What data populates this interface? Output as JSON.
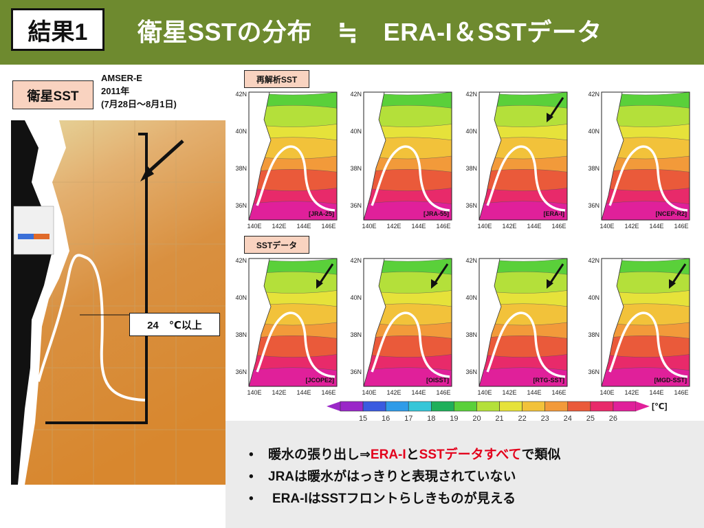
{
  "header": {
    "badge": "結果1",
    "title": "衛星SSTの分布　≒　ERA-I＆SSTデータ"
  },
  "satellite": {
    "tag": "衛星SST",
    "sensor": "AMSER-E",
    "year": "2011年",
    "period": "(7月28日～8月1日)",
    "callout": "24　℃以上"
  },
  "reanalysis": {
    "tag": "再解析SST",
    "panels": [
      {
        "label": "[JRA-25]"
      },
      {
        "label": "[JRA-55]"
      },
      {
        "label": "[ERA-I]"
      },
      {
        "label": "[NCEP-R2]"
      }
    ]
  },
  "sst_data": {
    "tag": "SSTデータ",
    "panels": [
      {
        "label": "[JCOPE2]"
      },
      {
        "label": "[OISST]"
      },
      {
        "label": "[RTG-SST]"
      },
      {
        "label": "[MGD-SST]"
      }
    ]
  },
  "axes": {
    "lat_ticks": [
      "42N",
      "40N",
      "38N",
      "36N"
    ],
    "lon_ticks": [
      "140E",
      "142E",
      "144E",
      "146E"
    ]
  },
  "colorbar": {
    "ticks": [
      "15",
      "16",
      "17",
      "18",
      "19",
      "20",
      "21",
      "22",
      "23",
      "24",
      "25",
      "26"
    ],
    "unit": "[℃]",
    "colors": [
      "#9a28c8",
      "#3a5be0",
      "#2f9be8",
      "#36c6d8",
      "#1faf5a",
      "#5ad03a",
      "#b4e03a",
      "#e6e23a",
      "#f2c23a",
      "#f29a3a",
      "#ea5a3a",
      "#e82a6a",
      "#e0209a"
    ]
  },
  "notes": {
    "line1_pre": "暖水の張り出し⇒",
    "line1_red1": "ERA-I",
    "line1_mid": "と",
    "line1_red2": "SSTデータすべて",
    "line1_post": "で類似",
    "line2": "JRAは暖水がはっきりと表現されていない",
    "line3": "ERA-IはSSTフロントらしきものが見える",
    "bullet": "•"
  }
}
